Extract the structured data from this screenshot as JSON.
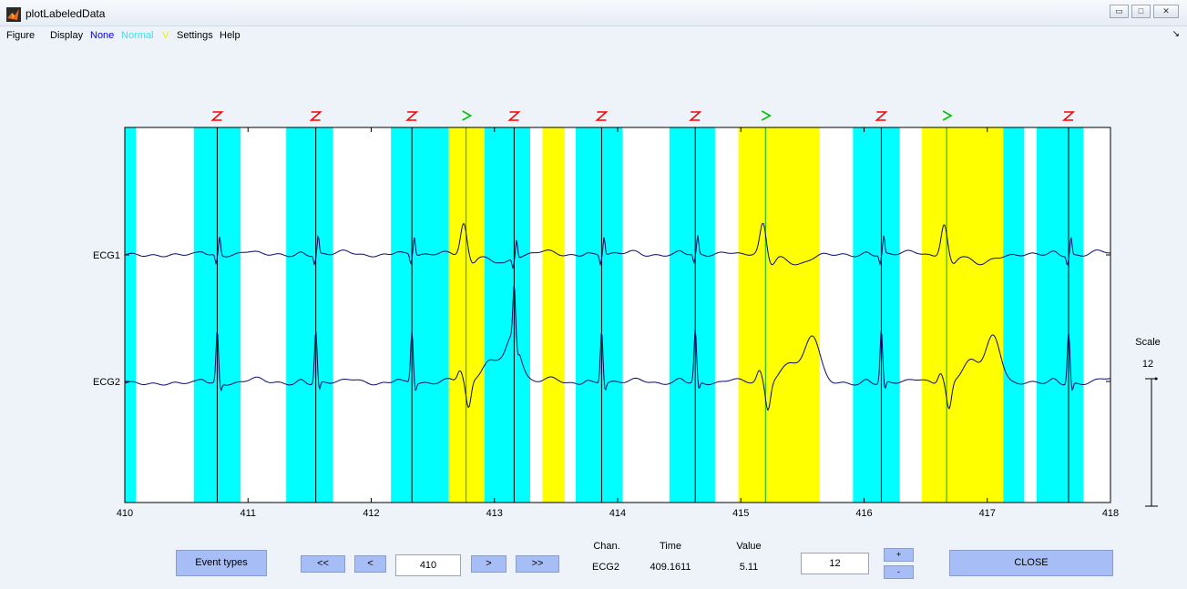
{
  "window": {
    "title": "plotLabeledData",
    "min_glyph": "▭",
    "max_glyph": "□",
    "close_glyph": "✕"
  },
  "menu": {
    "items": [
      {
        "label": "Figure",
        "kind": "plain"
      },
      {
        "label": "Display",
        "kind": "plain"
      },
      {
        "label": "None",
        "kind": "none"
      },
      {
        "label": "Normal",
        "kind": "normal"
      },
      {
        "label": "V",
        "kind": "v"
      },
      {
        "label": "Settings",
        "kind": "plain"
      },
      {
        "label": "Help",
        "kind": "plain"
      }
    ],
    "dock_arrow": "↘"
  },
  "colors": {
    "normal_region": "#00ffff",
    "v_region": "#ffff00",
    "n_marker": "#ff0000",
    "v_marker": "#00c000",
    "normal_line": "#000000",
    "v_line": "#00b000",
    "signal": "#0a0a6e"
  },
  "chart_data": {
    "type": "line",
    "x_range": [
      410,
      418
    ],
    "x_ticks": [
      "410",
      "411",
      "412",
      "413",
      "414",
      "415",
      "416",
      "417",
      "418"
    ],
    "channels": [
      "ECG1",
      "ECG2"
    ],
    "beats": [
      {
        "t": 410.75,
        "label": "N"
      },
      {
        "t": 411.55,
        "label": "N"
      },
      {
        "t": 412.33,
        "label": "N"
      },
      {
        "t": 412.77,
        "label": "V"
      },
      {
        "t": 413.16,
        "label": "N"
      },
      {
        "t": 413.87,
        "label": "N"
      },
      {
        "t": 414.63,
        "label": "N"
      },
      {
        "t": 415.2,
        "label": "V"
      },
      {
        "t": 416.14,
        "label": "N"
      },
      {
        "t": 416.67,
        "label": "V"
      },
      {
        "t": 417.66,
        "label": "N"
      }
    ],
    "regions": [
      {
        "start": 410.0,
        "end": 410.09,
        "type": "normal"
      },
      {
        "start": 410.56,
        "end": 410.94,
        "type": "normal"
      },
      {
        "start": 411.31,
        "end": 411.69,
        "type": "normal"
      },
      {
        "start": 412.16,
        "end": 412.63,
        "type": "normal"
      },
      {
        "start": 412.63,
        "end": 412.92,
        "type": "v"
      },
      {
        "start": 412.92,
        "end": 413.29,
        "type": "normal"
      },
      {
        "start": 413.39,
        "end": 413.57,
        "type": "v"
      },
      {
        "start": 413.66,
        "end": 414.04,
        "type": "normal"
      },
      {
        "start": 414.42,
        "end": 414.79,
        "type": "normal"
      },
      {
        "start": 414.98,
        "end": 415.64,
        "type": "v"
      },
      {
        "start": 415.91,
        "end": 416.29,
        "type": "normal"
      },
      {
        "start": 416.47,
        "end": 417.13,
        "type": "v"
      },
      {
        "start": 417.13,
        "end": 417.3,
        "type": "normal"
      },
      {
        "start": 417.4,
        "end": 417.78,
        "type": "normal"
      }
    ]
  },
  "scale": {
    "label": "Scale",
    "value": "12"
  },
  "controls": {
    "event_types": "Event types",
    "first": "<<",
    "prev": "<",
    "time_field": "410",
    "next": ">",
    "last": ">>",
    "chan_header": "Chan.",
    "time_header": "Time",
    "value_header": "Value",
    "chan_value": "ECG2",
    "time_value": "409.1611",
    "value_value": "5.11",
    "scale_field": "12",
    "plus": "+",
    "minus": "-",
    "close": "CLOSE"
  }
}
